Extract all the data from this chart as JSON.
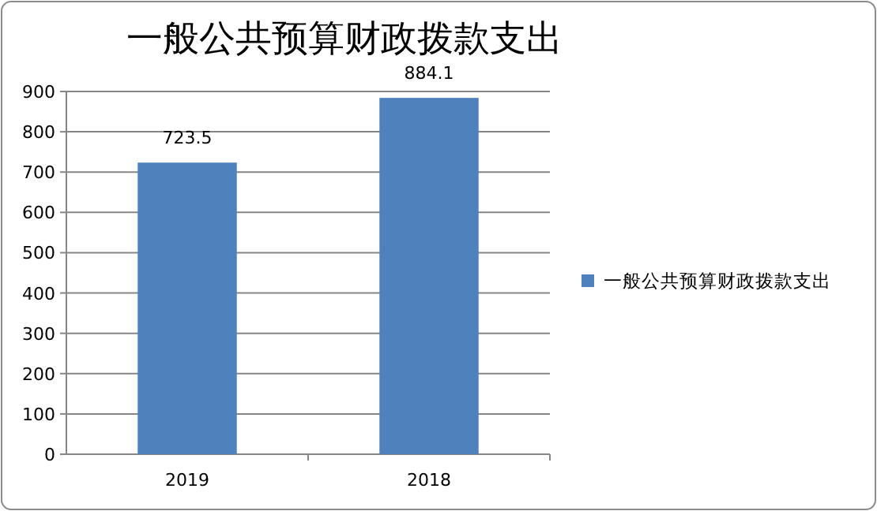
{
  "chart_data": {
    "type": "bar",
    "title": "一般公共预算财政拨款支出",
    "categories": [
      "2019",
      "2018"
    ],
    "series": [
      {
        "name": "一般公共预算财政拨款支出",
        "color": "#4f81bd",
        "values": [
          723.5,
          884.1
        ]
      }
    ],
    "ylim": [
      0,
      900
    ],
    "yticks": [
      0,
      100,
      200,
      300,
      400,
      500,
      600,
      700,
      800,
      900
    ],
    "grid": "y",
    "legend": "right",
    "data_labels": true
  }
}
